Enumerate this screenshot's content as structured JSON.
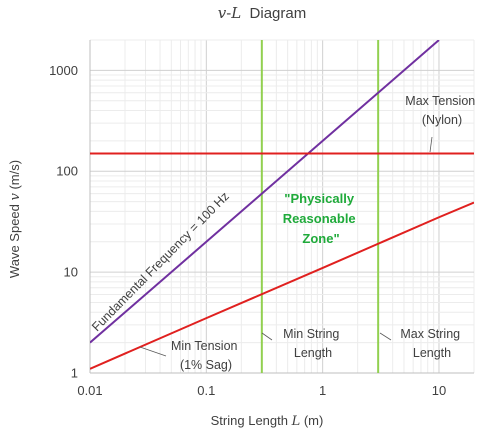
{
  "chart_data": {
    "type": "line",
    "title": {
      "v": "v",
      "sep": "-",
      "L": "L",
      "rest": "  Diagram"
    },
    "xlabel": {
      "text": "String Length ",
      "var": "L",
      "unit": " (m)"
    },
    "ylabel": {
      "text": "Wave Speed ",
      "var": "v",
      "unit": " (m/s)"
    },
    "xscale": "log",
    "yscale": "log",
    "xlim": [
      0.01,
      20
    ],
    "ylim": [
      1,
      2000
    ],
    "xticks": [
      {
        "value": 0.01,
        "label": "0.01"
      },
      {
        "value": 0.1,
        "label": "0.1"
      },
      {
        "value": 1,
        "label": "1"
      },
      {
        "value": 10,
        "label": "10"
      }
    ],
    "yticks": [
      {
        "value": 1,
        "label": "1"
      },
      {
        "value": 10,
        "label": "10"
      },
      {
        "value": 100,
        "label": "100"
      },
      {
        "value": 1000,
        "label": "1000"
      }
    ],
    "grid": true,
    "series": [
      {
        "name": "Fundamental Frequency = 100 Hz",
        "color": "#7030a0",
        "x": [
          0.01,
          0.1,
          1,
          10
        ],
        "y": [
          2,
          20,
          200,
          2000
        ]
      },
      {
        "name": "Min Tension (1% Sag)",
        "color": "#e0201f",
        "x": [
          0.01,
          0.1,
          1,
          10,
          20
        ],
        "y": [
          1.1,
          3.5,
          11,
          35,
          49
        ]
      },
      {
        "name": "Max Tension (Nylon)",
        "color": "#e0201f",
        "x": [
          0.01,
          20
        ],
        "y": [
          150,
          150
        ]
      }
    ],
    "vlines": [
      {
        "name": "Min String Length",
        "color": "#92d050",
        "x": 0.3
      },
      {
        "name": "Max String Length",
        "color": "#92d050",
        "x": 3
      }
    ],
    "annotations": {
      "freq_label": "Fundamental Frequency = 100 Hz",
      "max_tension": [
        "Max Tension",
        "(Nylon)"
      ],
      "min_tension": [
        "Min Tension",
        "(1% Sag)"
      ],
      "min_length": [
        "Min String",
        "Length"
      ],
      "max_length": [
        "Max String",
        "Length"
      ],
      "zone": [
        "\"Physically",
        "Reasonable",
        "Zone\""
      ],
      "zone_color": "#1faa3a"
    }
  }
}
